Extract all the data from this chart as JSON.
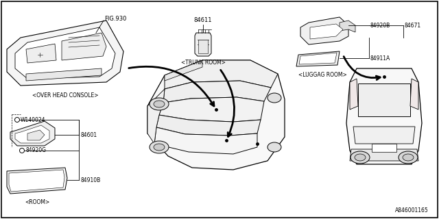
{
  "background_color": "#ffffff",
  "border_color": "#000000",
  "fig_width": 6.4,
  "fig_height": 3.2,
  "dpi": 100,
  "labels": {
    "fig930": "FIG.930",
    "overhead": "<OVER HEAD CONSOLE>",
    "trunk_num": "84611",
    "trunk": "<TRUNK ROOM>",
    "luggage": "<LUGGAG ROOM>",
    "room": "<ROOM>",
    "w140024": "W140024",
    "num_84601": "84601",
    "num_84920G": "84920G",
    "num_84910B": "84910B",
    "num_84920B": "84920B",
    "num_84671": "84671",
    "num_84911A": "84911A",
    "ref_code": "A846001165"
  },
  "lc": "#000000",
  "tc": "#000000",
  "fs": 5.5
}
